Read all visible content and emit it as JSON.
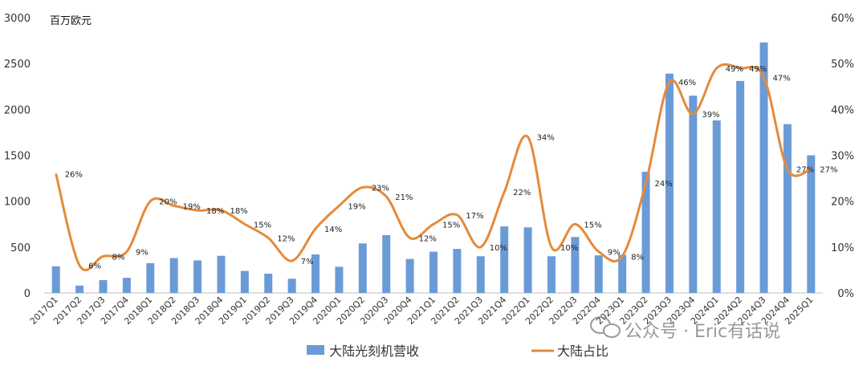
{
  "chart_data": {
    "type": "bar+line",
    "unit_label": "百万欧元",
    "categories": [
      "2017Q1",
      "2017Q2",
      "2017Q3",
      "2017Q4",
      "2018Q1",
      "2018Q2",
      "2018Q3",
      "2018Q4",
      "2019Q1",
      "2019Q2",
      "2019Q3",
      "2019Q4",
      "2020Q1",
      "2020Q2",
      "2020Q3",
      "2020Q4",
      "2021Q1",
      "2021Q2",
      "2021Q3",
      "2021Q4",
      "2022Q1",
      "2022Q2",
      "2022Q3",
      "2022Q4",
      "2023Q1",
      "2023Q2",
      "2023Q3",
      "2023Q4",
      "2024Q1",
      "2024Q2",
      "2024Q3",
      "2024Q4",
      "2025Q1"
    ],
    "series": [
      {
        "name": "大陆光刻机营收",
        "type": "bar",
        "axis": "left",
        "color": "#6b9bd6",
        "values": [
          290,
          80,
          140,
          165,
          325,
          380,
          355,
          405,
          240,
          210,
          155,
          420,
          285,
          540,
          630,
          370,
          450,
          480,
          400,
          725,
          715,
          400,
          610,
          410,
          415,
          1320,
          2390,
          2150,
          1880,
          2310,
          2730,
          1840,
          1500
        ]
      },
      {
        "name": "大陆占比",
        "type": "line",
        "axis": "right",
        "color": "#e58a3b",
        "values": [
          26,
          6,
          8,
          9,
          20,
          19,
          18,
          18,
          15,
          12,
          7,
          14,
          19,
          23,
          21,
          12,
          15,
          17,
          10,
          22,
          34,
          10,
          15,
          9,
          8,
          24,
          46,
          39,
          49,
          49,
          47,
          27,
          27
        ],
        "labels": [
          "26%",
          "6%",
          "8%",
          "9%",
          "20%",
          "19%",
          "18%",
          "18%",
          "15%",
          "12%",
          "7%",
          "14%",
          "19%",
          "23%",
          "21%",
          "12%",
          "15%",
          "17%",
          "10%",
          "22%",
          "34%",
          "10%",
          "15%",
          "9%",
          "8%",
          "24%",
          "46%",
          "39%",
          "49%",
          "49%",
          "47%",
          "27%",
          "27%"
        ]
      }
    ],
    "y_left": {
      "min": 0,
      "max": 3000,
      "ticks": [
        "0",
        "500",
        "1000",
        "1500",
        "2000",
        "2500",
        "3000"
      ]
    },
    "y_right": {
      "min": 0,
      "max": 60,
      "ticks": [
        "0%",
        "10%",
        "20%",
        "30%",
        "40%",
        "50%",
        "60%"
      ]
    },
    "grid": false,
    "legend_position": "bottom"
  },
  "watermark": "公众号 · Eric有话说"
}
